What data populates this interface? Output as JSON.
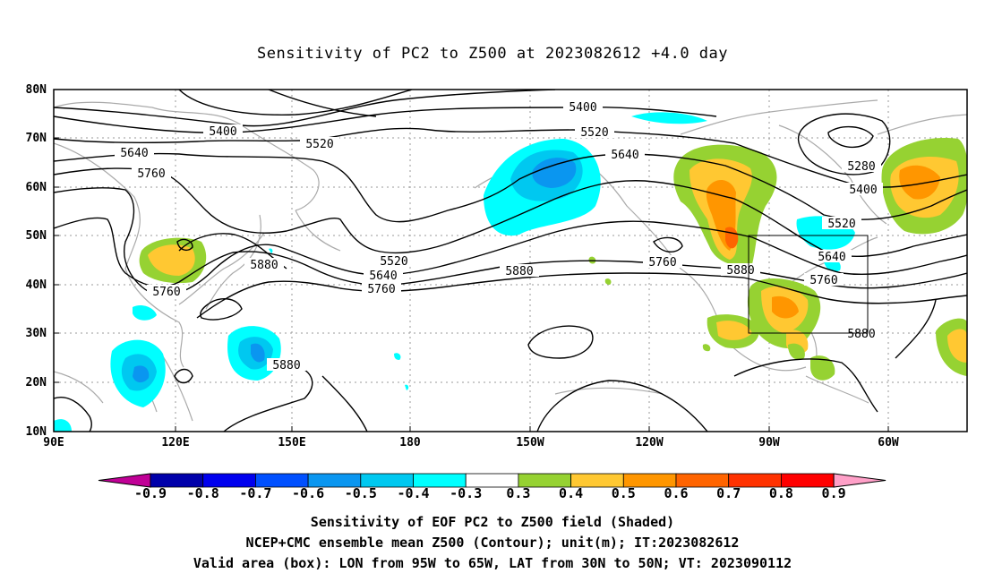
{
  "title": "Sensitivity of PC2 to Z500 at 2023082612 +4.0 day",
  "axes": {
    "lat_labels": [
      "80N",
      "70N",
      "60N",
      "50N",
      "40N",
      "30N",
      "20N",
      "10N"
    ],
    "lon_labels": [
      "90E",
      "120E",
      "150E",
      "180",
      "150W",
      "120W",
      "90W",
      "60W"
    ]
  },
  "contour_labels": [
    {
      "text": "5400",
      "id": "a"
    },
    {
      "text": "5400",
      "id": "b"
    },
    {
      "text": "5400",
      "id": "c"
    },
    {
      "text": "5520",
      "id": "a"
    },
    {
      "text": "5520",
      "id": "b"
    },
    {
      "text": "5520",
      "id": "c"
    },
    {
      "text": "5520",
      "id": "d"
    },
    {
      "text": "5640",
      "id": "a"
    },
    {
      "text": "5640",
      "id": "b"
    },
    {
      "text": "5640",
      "id": "c"
    },
    {
      "text": "5640",
      "id": "d"
    },
    {
      "text": "5760",
      "id": "a"
    },
    {
      "text": "5760",
      "id": "b"
    },
    {
      "text": "5760",
      "id": "c"
    },
    {
      "text": "5760",
      "id": "d"
    },
    {
      "text": "5760",
      "id": "e"
    },
    {
      "text": "5880",
      "id": "a"
    },
    {
      "text": "5880",
      "id": "b"
    },
    {
      "text": "5880",
      "id": "c"
    },
    {
      "text": "5880",
      "id": "d"
    },
    {
      "text": "5880",
      "id": "e"
    },
    {
      "text": "5280",
      "id": "a"
    }
  ],
  "colorbar": {
    "levels": [
      "-0.9",
      "-0.8",
      "-0.7",
      "-0.6",
      "-0.5",
      "-0.4",
      "-0.3",
      "0.3",
      "0.4",
      "0.5",
      "0.6",
      "0.7",
      "0.8",
      "0.9"
    ],
    "colors": [
      "#c00096",
      "#0000aa",
      "#0000ee",
      "#0050ff",
      "#0a96f0",
      "#00c8f0",
      "#00ffff",
      "#ffffff",
      "#96d232",
      "#ffc832",
      "#ff9600",
      "#ff6400",
      "#ff3200",
      "#ff0000",
      "#ffa0c8"
    ]
  },
  "caption": [
    "Sensitivity of EOF PC2 to Z500 field (Shaded)",
    "NCEP+CMC ensemble mean Z500 (Contour); unit(m); IT:2023082612",
    "Valid area (box): LON from 95W to 65W, LAT from 30N to 50N; VT: 2023090112"
  ]
}
